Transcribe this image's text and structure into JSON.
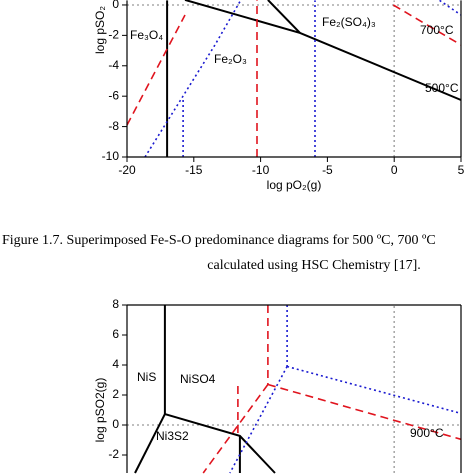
{
  "chart_data": [
    {
      "type": "line",
      "xlabel": "log pO₂(g)",
      "ylabel": "log pSO₂",
      "xlim": [
        -20,
        5
      ],
      "ylim": [
        -10,
        0.3
      ],
      "xticks": [
        -20,
        -15,
        -10,
        -5,
        0,
        5
      ],
      "yticks": [
        -10,
        -8,
        -6,
        -4,
        -2,
        0
      ],
      "annotations": [
        "Fe₃O₄",
        "Fe₂O₃",
        "Fe₂(SO₄)₃",
        "700°C",
        "500°C"
      ],
      "annotation_colors": [
        "#000000",
        "#000000",
        "#000000",
        "#e0141e",
        "#000000"
      ],
      "series": [
        {
          "color": "#aaaaaa",
          "style": "dotted",
          "x": [
            0,
            0
          ],
          "y": [
            -10,
            0.3
          ]
        },
        {
          "color": "#aaaaaa",
          "style": "dotted",
          "x": [
            -20,
            5
          ],
          "y": [
            0,
            0
          ]
        },
        {
          "color": "#000000",
          "style": "solid",
          "x": [
            -17.0,
            -17.0
          ],
          "y": [
            -10,
            0.3
          ]
        },
        {
          "color": "#000000",
          "style": "solid",
          "x": [
            -15.66,
            -7.05,
            5
          ],
          "y": [
            0.33,
            -1.84,
            -6.25
          ]
        },
        {
          "color": "#000000",
          "style": "solid",
          "x": [
            -9.45,
            -7.05
          ],
          "y": [
            0.33,
            -1.84
          ]
        },
        {
          "color": "#e0141e",
          "style": "dashed",
          "x": [
            -20,
            -15.66
          ],
          "y": [
            -7.9,
            -0.66
          ]
        },
        {
          "color": "#e0141e",
          "style": "dashed",
          "x": [
            -10.27,
            -10.27
          ],
          "y": [
            -10,
            0.3
          ]
        },
        {
          "color": "#e0141e",
          "style": "dashed",
          "x": [
            -0.07,
            5
          ],
          "y": [
            0,
            -2.63
          ]
        },
        {
          "color": "#1a1ad0",
          "style": "dotted",
          "x": [
            -18.65,
            -13.41,
            -11.5
          ],
          "y": [
            -10,
            -2.63,
            0.3
          ]
        },
        {
          "color": "#1a1ad0",
          "style": "dotted",
          "x": [
            -15.8,
            -15.8
          ],
          "y": [
            -10,
            -6.25
          ]
        },
        {
          "color": "#1a1ad0",
          "style": "dotted",
          "x": [
            -5.93,
            -5.93
          ],
          "y": [
            -10,
            0.3
          ]
        },
        {
          "color": "#1a1ad0",
          "style": "dotted",
          "x": [
            3.4,
            5
          ],
          "y": [
            0.3,
            -0.66
          ]
        }
      ]
    },
    {
      "type": "line",
      "ylabel": "log pSO2(g)",
      "xlim": [
        -20,
        5
      ],
      "ylim": [
        -3.2,
        8
      ],
      "yticks": [
        -2,
        0,
        2,
        4,
        6,
        8
      ],
      "annotations": [
        "NiS",
        "NiSO4",
        "Ni3S2",
        "900°C"
      ],
      "annotation_colors": [
        "#000000",
        "#000000",
        "#000000",
        "#1a1ad0"
      ],
      "series": [
        {
          "color": "#aaaaaa",
          "style": "dotted",
          "x": [
            0,
            0
          ],
          "y": [
            -3.2,
            8
          ]
        },
        {
          "color": "#aaaaaa",
          "style": "dotted",
          "x": [
            -20,
            5
          ],
          "y": [
            0,
            0
          ]
        },
        {
          "color": "#000000",
          "style": "solid",
          "x": [
            -17.16,
            -17.16
          ],
          "y": [
            8,
            0.73
          ]
        },
        {
          "color": "#000000",
          "style": "solid",
          "x": [
            -17.16,
            -11.55,
            -8.92
          ],
          "y": [
            0.73,
            -0.73,
            -3.2
          ]
        },
        {
          "color": "#000000",
          "style": "solid",
          "x": [
            -17.16,
            -19.4
          ],
          "y": [
            0.73,
            -3.2
          ]
        },
        {
          "color": "#000000",
          "style": "solid",
          "x": [
            -11.55,
            -11.55
          ],
          "y": [
            -0.73,
            -3.2
          ]
        },
        {
          "color": "#e0141e",
          "style": "dashed",
          "x": [
            -9.45,
            -9.45
          ],
          "y": [
            8,
            2.7
          ]
        },
        {
          "color": "#e0141e",
          "style": "dashed",
          "x": [
            -9.45,
            5
          ],
          "y": [
            2.7,
            -0.95
          ]
        },
        {
          "color": "#e0141e",
          "style": "dashed",
          "x": [
            -9.45,
            -14.3
          ],
          "y": [
            2.7,
            -3.2
          ]
        },
        {
          "color": "#e0141e",
          "style": "dashed",
          "x": [
            -11.7,
            -11.7
          ],
          "y": [
            2.6,
            -0.73
          ]
        },
        {
          "color": "#1a1ad0",
          "style": "dotted",
          "x": [
            -8.02,
            -8.02
          ],
          "y": [
            8,
            3.9
          ]
        },
        {
          "color": "#1a1ad0",
          "style": "dotted",
          "x": [
            -8.02,
            5
          ],
          "y": [
            3.9,
            0.77
          ]
        },
        {
          "color": "#1a1ad0",
          "style": "dotted",
          "x": [
            -8.02,
            -12.3
          ],
          "y": [
            3.9,
            -3.2
          ]
        }
      ]
    }
  ],
  "caption": [
    "Figure 1.7. Superimposed Fe-S-O predominance diagrams for 500 ºC, 700 ºC",
    "calculated using HSC Chemistry [17]."
  ]
}
